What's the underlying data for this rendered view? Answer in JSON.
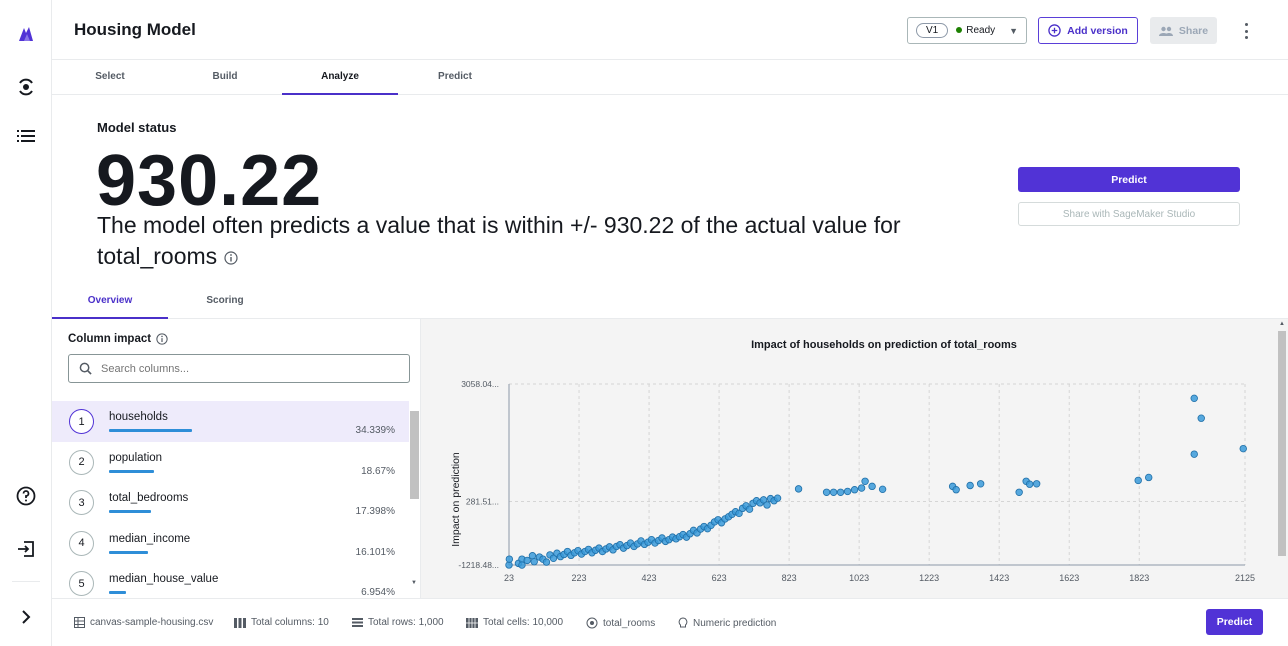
{
  "header": {
    "title": "Housing Model",
    "version": "V1",
    "status": "Ready",
    "add_version": "Add version",
    "share": "Share"
  },
  "tabs": [
    "Select",
    "Build",
    "Analyze",
    "Predict"
  ],
  "active_tab": "Analyze",
  "model_status": {
    "label": "Model status",
    "value": "930.22",
    "description": "The model often predicts a value that is within +/- 930.22 of the actual value for",
    "target": "total_rooms"
  },
  "actions": {
    "predict": "Predict",
    "share_studio": "Share with SageMaker Studio"
  },
  "subtabs": [
    "Overview",
    "Scoring"
  ],
  "column_impact": {
    "title": "Column impact",
    "search_placeholder": "Search columns...",
    "items": [
      {
        "rank": "1",
        "name": "households",
        "percent": "34.339%",
        "value": 34.339
      },
      {
        "rank": "2",
        "name": "population",
        "percent": "18.67%",
        "value": 18.67
      },
      {
        "rank": "3",
        "name": "total_bedrooms",
        "percent": "17.398%",
        "value": 17.398
      },
      {
        "rank": "4",
        "name": "median_income",
        "percent": "16.101%",
        "value": 16.101
      },
      {
        "rank": "5",
        "name": "median_house_value",
        "percent": "6.954%",
        "value": 6.954
      }
    ]
  },
  "chart_data": {
    "type": "scatter",
    "title": "Impact of households on prediction of total_rooms",
    "xlabel": "",
    "ylabel": "Impact on prediction",
    "x_ticks": [
      "23",
      "223",
      "423",
      "623",
      "823",
      "1023",
      "1223",
      "1423",
      "1623",
      "1823",
      "2125"
    ],
    "y_ticks": [
      "3058.04...",
      "281.51...",
      "-1218.48..."
    ],
    "xlim": [
      23,
      2125
    ],
    "ylim": [
      -1218.48,
      3058.04
    ],
    "grid": true,
    "color": "#3a9ad9",
    "points": [
      [
        23,
        -1218
      ],
      [
        24,
        -1080
      ],
      [
        50,
        -1180
      ],
      [
        60,
        -1080
      ],
      [
        60,
        -1220
      ],
      [
        75,
        -1110
      ],
      [
        90,
        -1000
      ],
      [
        95,
        -1140
      ],
      [
        110,
        -1030
      ],
      [
        120,
        -1080
      ],
      [
        130,
        -1150
      ],
      [
        140,
        -980
      ],
      [
        150,
        -1060
      ],
      [
        160,
        -940
      ],
      [
        170,
        -1020
      ],
      [
        180,
        -970
      ],
      [
        190,
        -900
      ],
      [
        200,
        -990
      ],
      [
        210,
        -930
      ],
      [
        220,
        -880
      ],
      [
        230,
        -960
      ],
      [
        240,
        -900
      ],
      [
        250,
        -850
      ],
      [
        260,
        -930
      ],
      [
        270,
        -870
      ],
      [
        280,
        -820
      ],
      [
        290,
        -900
      ],
      [
        300,
        -840
      ],
      [
        310,
        -790
      ],
      [
        320,
        -860
      ],
      [
        330,
        -780
      ],
      [
        340,
        -740
      ],
      [
        350,
        -820
      ],
      [
        360,
        -760
      ],
      [
        370,
        -700
      ],
      [
        380,
        -780
      ],
      [
        390,
        -720
      ],
      [
        400,
        -650
      ],
      [
        410,
        -730
      ],
      [
        420,
        -680
      ],
      [
        430,
        -620
      ],
      [
        440,
        -700
      ],
      [
        450,
        -640
      ],
      [
        460,
        -580
      ],
      [
        470,
        -660
      ],
      [
        480,
        -620
      ],
      [
        490,
        -560
      ],
      [
        500,
        -600
      ],
      [
        510,
        -550
      ],
      [
        520,
        -500
      ],
      [
        530,
        -560
      ],
      [
        540,
        -480
      ],
      [
        550,
        -400
      ],
      [
        560,
        -460
      ],
      [
        570,
        -370
      ],
      [
        580,
        -310
      ],
      [
        590,
        -360
      ],
      [
        600,
        -280
      ],
      [
        610,
        -200
      ],
      [
        620,
        -150
      ],
      [
        630,
        -220
      ],
      [
        640,
        -130
      ],
      [
        650,
        -80
      ],
      [
        660,
        -20
      ],
      [
        670,
        40
      ],
      [
        680,
        0
      ],
      [
        690,
        120
      ],
      [
        700,
        180
      ],
      [
        710,
        100
      ],
      [
        720,
        240
      ],
      [
        730,
        300
      ],
      [
        740,
        250
      ],
      [
        750,
        320
      ],
      [
        760,
        200
      ],
      [
        770,
        350
      ],
      [
        780,
        300
      ],
      [
        790,
        360
      ],
      [
        850,
        580
      ],
      [
        930,
        500
      ],
      [
        950,
        500
      ],
      [
        970,
        500
      ],
      [
        990,
        520
      ],
      [
        1010,
        560
      ],
      [
        1030,
        600
      ],
      [
        1040,
        760
      ],
      [
        1060,
        640
      ],
      [
        1090,
        570
      ],
      [
        1290,
        640
      ],
      [
        1300,
        560
      ],
      [
        1340,
        660
      ],
      [
        1370,
        700
      ],
      [
        1480,
        500
      ],
      [
        1500,
        760
      ],
      [
        1510,
        690
      ],
      [
        1530,
        700
      ],
      [
        1820,
        780
      ],
      [
        1850,
        850
      ],
      [
        1980,
        1400
      ],
      [
        1980,
        2720
      ],
      [
        2120,
        1530
      ],
      [
        2000,
        2250
      ]
    ]
  },
  "footer": {
    "file": "canvas-sample-housing.csv",
    "columns": "Total columns: 10",
    "rows": "Total rows: 1,000",
    "cells": "Total cells: 10,000",
    "target": "total_rooms",
    "type": "Numeric prediction",
    "predict": "Predict"
  },
  "colors": {
    "accent": "#5133d6",
    "bar": "#2e8ed8",
    "ready": "#1d8102"
  }
}
